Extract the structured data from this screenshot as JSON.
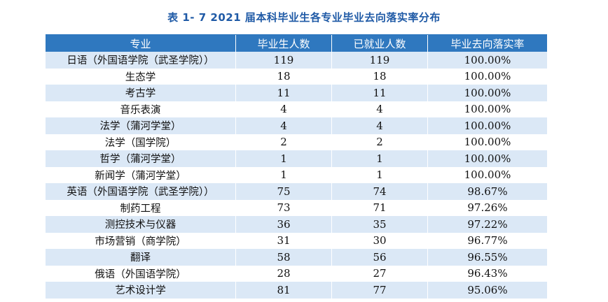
{
  "caption": "表 1- 7 2021 届本科毕业生各专业毕业去向落实率分布",
  "table": {
    "headers": [
      "专业",
      "毕业生人数",
      "已就业人数",
      "毕业去向落实率"
    ],
    "rows": [
      [
        "日语（外国语学院（武圣学院））",
        "119",
        "119",
        "100.00%"
      ],
      [
        "生态学",
        "18",
        "18",
        "100.00%"
      ],
      [
        "考古学",
        "11",
        "11",
        "100.00%"
      ],
      [
        "音乐表演",
        "4",
        "4",
        "100.00%"
      ],
      [
        "法学（蒲河学堂）",
        "4",
        "4",
        "100.00%"
      ],
      [
        "法学（国学院）",
        "2",
        "2",
        "100.00%"
      ],
      [
        "哲学（蒲河学堂）",
        "1",
        "1",
        "100.00%"
      ],
      [
        "新闻学（蒲河学堂）",
        "1",
        "1",
        "100.00%"
      ],
      [
        "英语（外国语学院（武圣学院））",
        "75",
        "74",
        "98.67%"
      ],
      [
        "制药工程",
        "73",
        "71",
        "97.26%"
      ],
      [
        "测控技术与仪器",
        "36",
        "35",
        "97.22%"
      ],
      [
        "市场营销（商学院）",
        "31",
        "30",
        "96.77%"
      ],
      [
        "翻译",
        "58",
        "56",
        "96.55%"
      ],
      [
        "俄语（外国语学院）",
        "28",
        "27",
        "96.43%"
      ],
      [
        "艺术设计学",
        "81",
        "77",
        "95.06%"
      ]
    ]
  },
  "colors": {
    "header_bg": "#2f78bf",
    "stripe": "#dbe8f6",
    "title": "#1f5aa6"
  }
}
